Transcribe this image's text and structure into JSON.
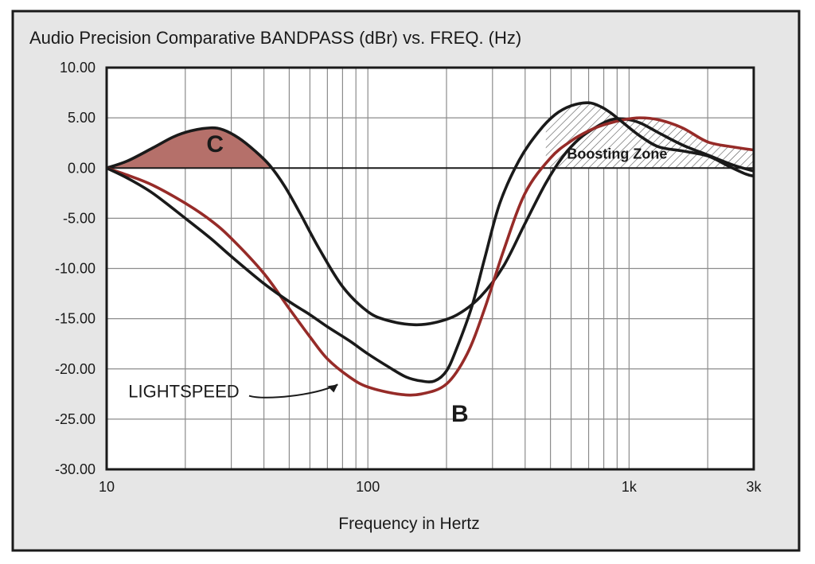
{
  "chart_data": {
    "type": "line",
    "title": "Audio Precision Comparative BANDPASS (dBr) vs. FREQ. (Hz)",
    "xlabel": "Frequency in Hertz",
    "ylabel": "",
    "x_scale": "log",
    "xlim": [
      10,
      3000
    ],
    "ylim": [
      -30,
      10
    ],
    "y_ticks": [
      10,
      5,
      0,
      -5,
      -10,
      -15,
      -20,
      -25,
      -30
    ],
    "y_tick_labels": [
      "10.00",
      "5.00",
      "0.00",
      "-5.00",
      "-10.00",
      "-15.00",
      "-20.00",
      "-25.00",
      "-30.00"
    ],
    "x_ticks": [
      10,
      100,
      1000,
      3000
    ],
    "x_tick_labels": [
      "10",
      "100",
      "1k",
      "3k"
    ],
    "grid": true,
    "series": [
      {
        "name": "C",
        "color": "#1a1a1a",
        "fill_positive": "#b5706a",
        "x": [
          10,
          12,
          15,
          18,
          21,
          25,
          28,
          32,
          37,
          42,
          48,
          55,
          65,
          80,
          100,
          120,
          150,
          180,
          220,
          270,
          330,
          400,
          480,
          560,
          650,
          750,
          850,
          950,
          1100,
          1300,
          1600,
          2000,
          2500,
          3000
        ],
        "y": [
          0,
          0.7,
          2,
          3.1,
          3.7,
          4.0,
          3.8,
          3.0,
          1.7,
          0.3,
          -1.8,
          -4.5,
          -8.0,
          -11.8,
          -14.3,
          -15.2,
          -15.6,
          -15.4,
          -14.6,
          -12.8,
          -9.8,
          -5.5,
          -1.5,
          1.2,
          3.0,
          4.1,
          4.8,
          4.9,
          4.5,
          3.5,
          2.3,
          1.3,
          0.3,
          -0.3
        ]
      },
      {
        "name": "LIGHTSPEED",
        "color": "#962b28",
        "x": [
          10,
          12,
          15,
          20,
          25,
          30,
          40,
          50,
          60,
          70,
          85,
          100,
          130,
          160,
          200,
          240,
          280,
          330,
          400,
          500,
          600,
          700,
          800,
          950,
          1100,
          1300,
          1600,
          2000,
          2500,
          3000
        ],
        "y": [
          0,
          -0.7,
          -1.7,
          -3.5,
          -5.2,
          -7,
          -10.5,
          -14,
          -16.8,
          -19,
          -20.8,
          -21.8,
          -22.5,
          -22.5,
          -21.5,
          -18.5,
          -14,
          -8.3,
          -2.5,
          1,
          2.7,
          3.7,
          4.3,
          4.8,
          5,
          4.8,
          4,
          2.6,
          2.1,
          1.8
        ]
      },
      {
        "name": "B",
        "color": "#1a1a1a",
        "x": [
          10,
          12,
          15,
          20,
          25,
          30,
          40,
          50,
          60,
          70,
          85,
          100,
          120,
          140,
          160,
          180,
          200,
          220,
          250,
          280,
          320,
          380,
          450,
          520,
          600,
          700,
          780,
          850,
          950,
          1100,
          1300,
          1600,
          2000,
          2400,
          2800,
          3000
        ],
        "y": [
          0,
          -1,
          -2.5,
          -5,
          -7,
          -8.8,
          -11.5,
          -13.3,
          -14.6,
          -15.8,
          -17.2,
          -18.5,
          -19.8,
          -20.8,
          -21.2,
          -21.2,
          -20.2,
          -17.8,
          -13.8,
          -9,
          -3.5,
          0.8,
          3.6,
          5.3,
          6.2,
          6.5,
          6.1,
          5.5,
          4.5,
          3.2,
          2.1,
          1.7,
          1.2,
          0.2,
          -0.6,
          -0.8
        ]
      }
    ],
    "annotations": [
      {
        "text": "C",
        "x": 26,
        "y": 2.0
      },
      {
        "text": "LIGHTSPEED",
        "x": 16,
        "y": -22.2
      },
      {
        "text": "B",
        "x": 225,
        "y": -23.5
      },
      {
        "text": "Boosting Zone",
        "x": 1000,
        "y": 1.4
      }
    ],
    "boosting_zone": {
      "label": "Boosting Zone",
      "x_range": [
        480,
        3000
      ],
      "fill": "hatched"
    }
  }
}
